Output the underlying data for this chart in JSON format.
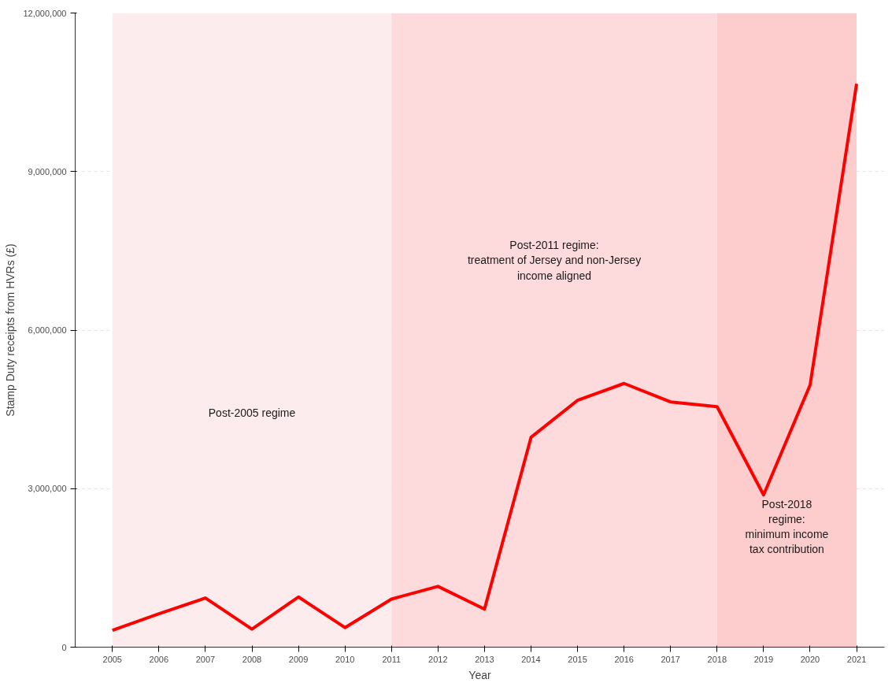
{
  "chart_data": {
    "type": "line",
    "xlabel": "Year",
    "ylabel": "Stamp Duty receipts from HVRs (£)",
    "x": [
      2005,
      2006,
      2007,
      2008,
      2009,
      2010,
      2011,
      2012,
      2013,
      2014,
      2015,
      2016,
      2017,
      2018,
      2019,
      2020,
      2021
    ],
    "series": [
      {
        "color": "#ff0000",
        "values": [
          320000,
          630000,
          930000,
          340000,
          950000,
          370000,
          910000,
          1150000,
          720000,
          3970000,
          4670000,
          4990000,
          4640000,
          4550000,
          2880000,
          4960000,
          10660000
        ]
      }
    ],
    "xlim": [
      2004.2,
      2021.6
    ],
    "xticks": [
      2005,
      2006,
      2007,
      2008,
      2009,
      2010,
      2011,
      2012,
      2013,
      2014,
      2015,
      2016,
      2017,
      2018,
      2019,
      2020,
      2021
    ],
    "ylim": [
      0,
      12000000
    ],
    "yticks": [
      {
        "value": 0,
        "label": "0"
      },
      {
        "value": 3000000,
        "label": "3,000,000"
      },
      {
        "value": 6000000,
        "label": "6,000,000"
      },
      {
        "value": 9000000,
        "label": "9,000,000"
      },
      {
        "value": 12000000,
        "label": "12,000,000"
      }
    ],
    "grid": "y",
    "marker": "none",
    "line_style": "solid",
    "bands": [
      {
        "axis": "x",
        "from": 2005,
        "to": 2011,
        "label": "Post-2005 regime",
        "color": "#fdeced"
      },
      {
        "axis": "x",
        "from": 2011,
        "to": 2018,
        "label": "Post-2011 regime:\ntreatment of Jersey and non-Jersey\nincome aligned",
        "color": "#fddadb"
      },
      {
        "axis": "x",
        "from": 2018,
        "to": 2021,
        "label": "Post-2018\nregime:\nminimum income\ntax contribution",
        "color": "#fdcccd"
      }
    ]
  }
}
